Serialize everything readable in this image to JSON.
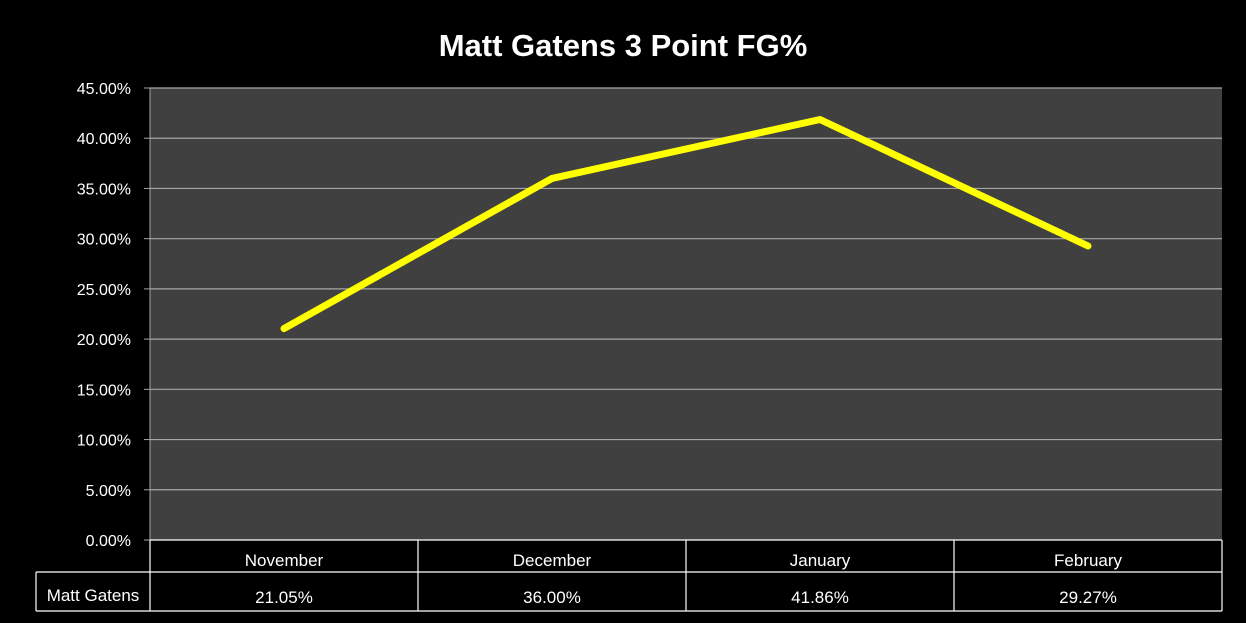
{
  "chart_data": {
    "type": "line",
    "title": "Matt Gatens 3 Point FG%",
    "xlabel": "",
    "ylabel": "",
    "categories": [
      "November",
      "December",
      "January",
      "February"
    ],
    "series": [
      {
        "name": "Matt Gatens",
        "values": [
          21.05,
          36.0,
          41.86,
          29.27
        ],
        "labels": [
          "21.05%",
          "36.00%",
          "41.86%",
          "29.27%"
        ],
        "color": "#ffff00"
      }
    ],
    "ylim": [
      0,
      45
    ],
    "yticks": [
      "0.00%",
      "5.00%",
      "10.00%",
      "15.00%",
      "20.00%",
      "25.00%",
      "30.00%",
      "35.00%",
      "40.00%",
      "45.00%"
    ],
    "grid": true,
    "legend": "data-table-below",
    "colors": {
      "background": "#000000",
      "plot_area": "#404040",
      "gridline": "#a6a6a6",
      "text": "#ffffff",
      "line": "#ffff00"
    }
  }
}
